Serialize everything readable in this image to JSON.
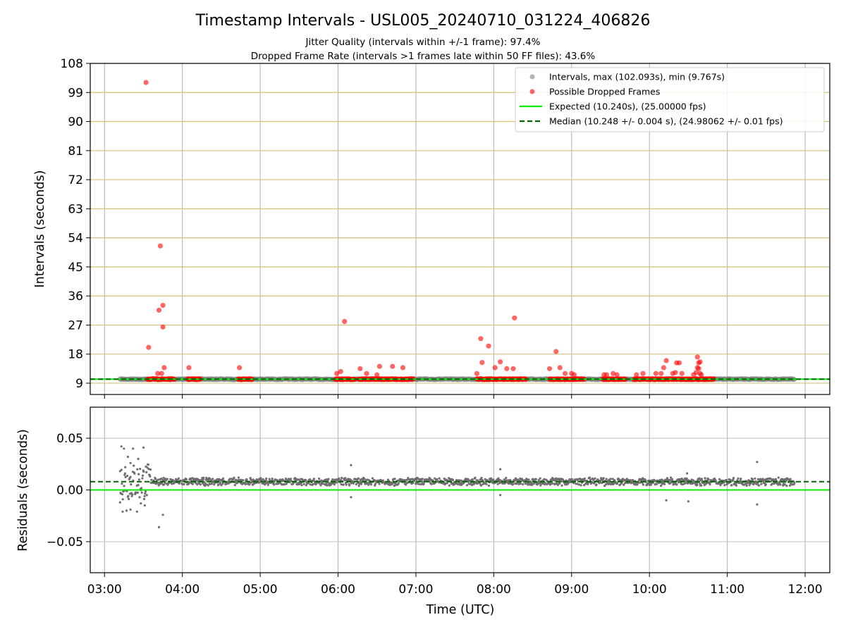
{
  "chart_data": [
    {
      "type": "scatter",
      "title": "Timestamp Intervals - USL005_20240710_031224_406826",
      "subtitles": [
        "Jitter Quality (intervals within +/-1 frame): 97.4%",
        "Dropped Frame Rate (intervals >1 frames late within 50 FF files): 43.6%"
      ],
      "xlabel": "",
      "ylabel": "Intervals (seconds)",
      "xlim": [
        "02:49",
        "12:19"
      ],
      "ylim": [
        5.5,
        108
      ],
      "yticks": [
        "9",
        "18",
        "27",
        "36",
        "45",
        "54",
        "63",
        "72",
        "81",
        "90",
        "99",
        "108"
      ],
      "grid": true,
      "legend_position": "top-right",
      "series": [
        {
          "name": "Intervals, max (102.093s), min (9.767s)",
          "kind": "scatter",
          "color": "#808080",
          "time_range": [
            "03:12",
            "11:52"
          ],
          "typical_value": 10.24
        },
        {
          "name": "Possible Dropped Frames",
          "kind": "scatter",
          "color": "#ff0000",
          "bands": [
            {
              "start": "03:33",
              "end": "03:54",
              "value": 10.24
            },
            {
              "start": "04:04",
              "end": "04:14",
              "value": 10.24
            },
            {
              "start": "04:43",
              "end": "04:54",
              "value": 10.24
            },
            {
              "start": "05:58",
              "end": "06:13",
              "value": 10.24
            },
            {
              "start": "06:16",
              "end": "06:58",
              "value": 10.24
            },
            {
              "start": "07:47",
              "end": "08:25",
              "value": 10.24
            },
            {
              "start": "08:43",
              "end": "09:10",
              "value": 10.24
            },
            {
              "start": "09:24",
              "end": "09:42",
              "value": 10.24
            },
            {
              "start": "09:48",
              "end": "10:50",
              "value": 10.24
            }
          ],
          "points": [
            {
              "x": "03:32",
              "y": 102.1
            },
            {
              "x": "03:34",
              "y": 20.1
            },
            {
              "x": "03:43",
              "y": 51.5
            },
            {
              "x": "03:42",
              "y": 31.6
            },
            {
              "x": "03:45",
              "y": 33.1
            },
            {
              "x": "03:45",
              "y": 26.4
            },
            {
              "x": "03:41",
              "y": 12.0
            },
            {
              "x": "03:44",
              "y": 12.0
            },
            {
              "x": "03:46",
              "y": 13.8
            },
            {
              "x": "04:05",
              "y": 13.8
            },
            {
              "x": "04:44",
              "y": 13.8
            },
            {
              "x": "05:59",
              "y": 12.0
            },
            {
              "x": "06:02",
              "y": 12.6
            },
            {
              "x": "06:05",
              "y": 28.1
            },
            {
              "x": "06:17",
              "y": 13.5
            },
            {
              "x": "06:22",
              "y": 12.0
            },
            {
              "x": "06:30",
              "y": 11.6
            },
            {
              "x": "06:32",
              "y": 14.2
            },
            {
              "x": "06:42",
              "y": 14.2
            },
            {
              "x": "06:50",
              "y": 13.8
            },
            {
              "x": "07:47",
              "y": 12.0
            },
            {
              "x": "07:50",
              "y": 22.8
            },
            {
              "x": "07:51",
              "y": 15.4
            },
            {
              "x": "07:56",
              "y": 20.5
            },
            {
              "x": "08:01",
              "y": 13.8
            },
            {
              "x": "08:05",
              "y": 15.6
            },
            {
              "x": "08:10",
              "y": 13.5
            },
            {
              "x": "08:15",
              "y": 13.5
            },
            {
              "x": "08:16",
              "y": 29.2
            },
            {
              "x": "08:43",
              "y": 13.5
            },
            {
              "x": "08:48",
              "y": 18.8
            },
            {
              "x": "08:51",
              "y": 13.8
            },
            {
              "x": "08:55",
              "y": 12.0
            },
            {
              "x": "09:00",
              "y": 12.0
            },
            {
              "x": "09:02",
              "y": 11.6
            },
            {
              "x": "09:25",
              "y": 11.6
            },
            {
              "x": "09:27",
              "y": 11.6
            },
            {
              "x": "09:32",
              "y": 12.0
            },
            {
              "x": "09:35",
              "y": 11.6
            },
            {
              "x": "09:50",
              "y": 11.6
            },
            {
              "x": "09:55",
              "y": 12.0
            },
            {
              "x": "10:05",
              "y": 12.0
            },
            {
              "x": "10:09",
              "y": 12.0
            },
            {
              "x": "10:11",
              "y": 13.8
            },
            {
              "x": "10:13",
              "y": 16.0
            },
            {
              "x": "10:18",
              "y": 12.0
            },
            {
              "x": "10:20",
              "y": 12.3
            },
            {
              "x": "10:21",
              "y": 15.3
            },
            {
              "x": "10:23",
              "y": 15.3
            },
            {
              "x": "10:25",
              "y": 12.0
            },
            {
              "x": "10:34",
              "y": 11.6
            },
            {
              "x": "10:37",
              "y": 17.1
            },
            {
              "x": "10:38",
              "y": 15.3
            },
            {
              "x": "10:39",
              "y": 15.6
            },
            {
              "x": "10:37",
              "y": 13.8
            },
            {
              "x": "10:38",
              "y": 13.5
            },
            {
              "x": "10:39",
              "y": 12.0
            },
            {
              "x": "10:40",
              "y": 11.6
            },
            {
              "x": "10:36",
              "y": 12.3
            }
          ]
        },
        {
          "name": "Expected (10.240s), (25.00000 fps)",
          "kind": "hline",
          "color": "#00ee00",
          "value": 10.24
        },
        {
          "name": "Median (10.248 +/- 0.004 s), (24.98062 +/- 0.01 fps)",
          "kind": "hline-dashed",
          "color": "#006400",
          "value": 10.248
        }
      ]
    },
    {
      "type": "scatter",
      "title": "",
      "xlabel": "Time (UTC)",
      "ylabel": "Residuals (seconds)",
      "xlim": [
        "02:49",
        "12:19"
      ],
      "ylim": [
        -0.08,
        0.08
      ],
      "yticks": [
        "−0.05",
        "0.00",
        "0.05"
      ],
      "xticks": [
        "03:00",
        "04:00",
        "05:00",
        "06:00",
        "07:00",
        "08:00",
        "09:00",
        "10:00",
        "11:00",
        "12:00"
      ],
      "grid": true,
      "series": [
        {
          "name": "",
          "kind": "scatter",
          "color": "#6e6e6e",
          "time_range": [
            "03:12",
            "11:52"
          ],
          "typical_value": 0.008
        },
        {
          "name": "",
          "kind": "hline",
          "color": "#00ee00",
          "value": 0.0
        },
        {
          "name": "",
          "kind": "hline-dashed",
          "color": "#006400",
          "value": 0.008
        }
      ],
      "outliers": [
        {
          "x": "03:13",
          "y": 0.042
        },
        {
          "x": "03:15",
          "y": 0.04
        },
        {
          "x": "03:18",
          "y": 0.032
        },
        {
          "x": "03:22",
          "y": 0.04
        },
        {
          "x": "03:30",
          "y": 0.041
        },
        {
          "x": "03:12",
          "y": -0.012
        },
        {
          "x": "03:14",
          "y": -0.021
        },
        {
          "x": "03:17",
          "y": -0.02
        },
        {
          "x": "03:20",
          "y": -0.019
        },
        {
          "x": "03:25",
          "y": -0.021
        },
        {
          "x": "03:28",
          "y": -0.013
        },
        {
          "x": "03:31",
          "y": -0.015
        },
        {
          "x": "03:42",
          "y": -0.036
        },
        {
          "x": "03:45",
          "y": -0.024
        },
        {
          "x": "03:16",
          "y": 0.022
        },
        {
          "x": "03:20",
          "y": 0.026
        },
        {
          "x": "03:26",
          "y": 0.03
        },
        {
          "x": "06:10",
          "y": 0.024
        },
        {
          "x": "06:10",
          "y": -0.007
        },
        {
          "x": "08:05",
          "y": 0.02
        },
        {
          "x": "08:05",
          "y": -0.005
        },
        {
          "x": "10:13",
          "y": -0.01
        },
        {
          "x": "10:29",
          "y": 0.016
        },
        {
          "x": "10:30",
          "y": -0.011
        },
        {
          "x": "11:23",
          "y": 0.027
        },
        {
          "x": "11:23",
          "y": -0.014
        }
      ]
    }
  ],
  "colors": {
    "grid_v": "#b0b0b0",
    "grid_h_top": "#d4c07a",
    "grid_h_bottom": "#c0c0c0",
    "legend_border": "#cccccc"
  }
}
